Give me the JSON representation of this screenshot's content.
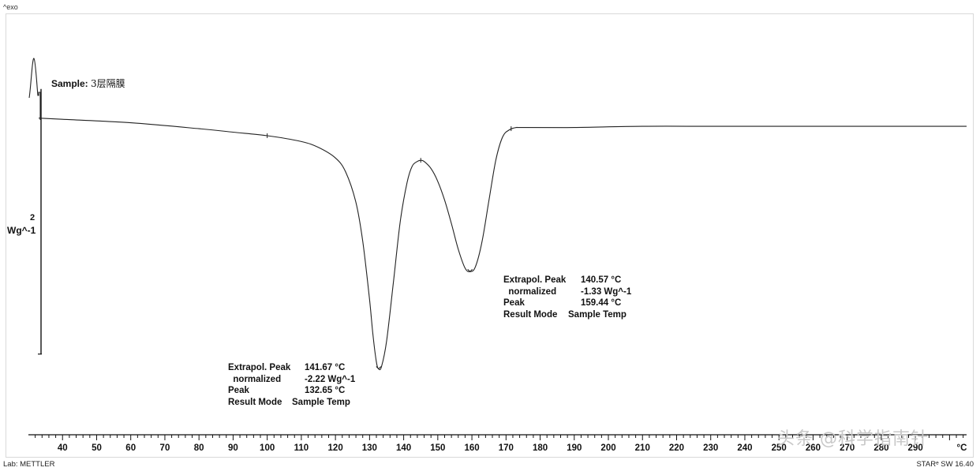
{
  "header": {
    "exo_label": "^exo"
  },
  "sample": {
    "label": "Sample:",
    "name": "3层隔膜"
  },
  "scale": {
    "value": "2",
    "unit": "Wg^-1"
  },
  "annotations": [
    {
      "rows": [
        {
          "label": "Extrapol. Peak",
          "value": "141.67 °C"
        },
        {
          "label": "  normalized",
          "value": "-2.22 Wg^-1"
        },
        {
          "label": "Peak",
          "value": "132.65 °C"
        },
        {
          "label": "Result Mode",
          "value": "Sample Temp"
        }
      ]
    },
    {
      "rows": [
        {
          "label": "Extrapol. Peak",
          "value": "140.57 °C"
        },
        {
          "label": "  normalized",
          "value": "-1.33 Wg^-1"
        },
        {
          "label": "Peak",
          "value": "159.44 °C"
        },
        {
          "label": "Result Mode",
          "value": "Sample Temp"
        }
      ]
    }
  ],
  "footer": {
    "left": "Lab: METTLER",
    "right": "STARᵉ SW 16.40"
  },
  "watermark": "头条 @科学指南针",
  "colors": {
    "curve": "#222222",
    "axis": "#111111",
    "frame": "#d9d9d9"
  },
  "chart_data": {
    "type": "line",
    "x_unit": "°C",
    "xlim": [
      30,
      305
    ],
    "x_ticks": [
      40,
      50,
      60,
      70,
      80,
      90,
      100,
      110,
      120,
      130,
      140,
      150,
      160,
      170,
      180,
      190,
      200,
      210,
      220,
      230,
      240,
      250,
      260,
      270,
      280,
      290
    ],
    "y_unit": "Wg^-1",
    "y_scale_bar": 2,
    "ylim": [
      -2.5,
      0.55
    ],
    "grid": false,
    "series": [
      {
        "x": [
          33,
          40,
          60,
          80,
          90,
          100,
          110,
          115,
          120,
          123,
          126,
          128,
          130,
          131,
          132,
          132.65,
          133.5,
          135,
          137,
          139,
          141,
          142.5,
          144,
          145,
          146,
          148,
          150,
          152,
          154,
          156,
          158,
          159.44,
          161,
          163,
          165,
          167,
          169,
          171,
          173,
          175,
          190,
          210,
          230,
          250,
          270,
          290,
          305
        ],
        "y": [
          0.0,
          -0.01,
          -0.04,
          -0.09,
          -0.12,
          -0.15,
          -0.2,
          -0.25,
          -0.34,
          -0.46,
          -0.72,
          -1.05,
          -1.55,
          -1.85,
          -2.08,
          -2.14,
          -2.12,
          -1.9,
          -1.4,
          -0.88,
          -0.55,
          -0.41,
          -0.37,
          -0.36,
          -0.37,
          -0.43,
          -0.54,
          -0.7,
          -0.9,
          -1.12,
          -1.28,
          -1.31,
          -1.27,
          -1.05,
          -0.7,
          -0.36,
          -0.16,
          -0.1,
          -0.08,
          -0.08,
          -0.08,
          -0.07,
          -0.07,
          -0.07,
          -0.07,
          -0.07,
          -0.07
        ]
      }
    ]
  }
}
